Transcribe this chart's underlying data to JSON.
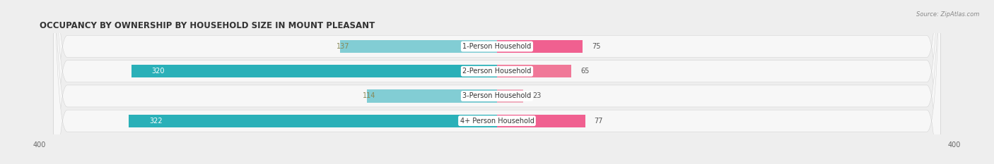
{
  "title": "OCCUPANCY BY OWNERSHIP BY HOUSEHOLD SIZE IN MOUNT PLEASANT",
  "source": "Source: ZipAtlas.com",
  "categories": [
    "1-Person Household",
    "2-Person Household",
    "3-Person Household",
    "4+ Person Household"
  ],
  "owner_values": [
    137,
    320,
    114,
    322
  ],
  "renter_values": [
    75,
    65,
    23,
    77
  ],
  "owner_color_dark": "#2ab0b8",
  "owner_color_light": "#82cdd4",
  "renter_color_dark": "#f06090",
  "renter_color_mid": "#f07898",
  "renter_color_light": "#f0b0c0",
  "axis_max": 400,
  "background_color": "#eeeeee",
  "row_bg_color": "#f7f7f7",
  "title_fontsize": 8.5,
  "label_fontsize": 7,
  "value_fontsize": 7,
  "legend_fontsize": 7,
  "source_fontsize": 6,
  "tick_fontsize": 7
}
